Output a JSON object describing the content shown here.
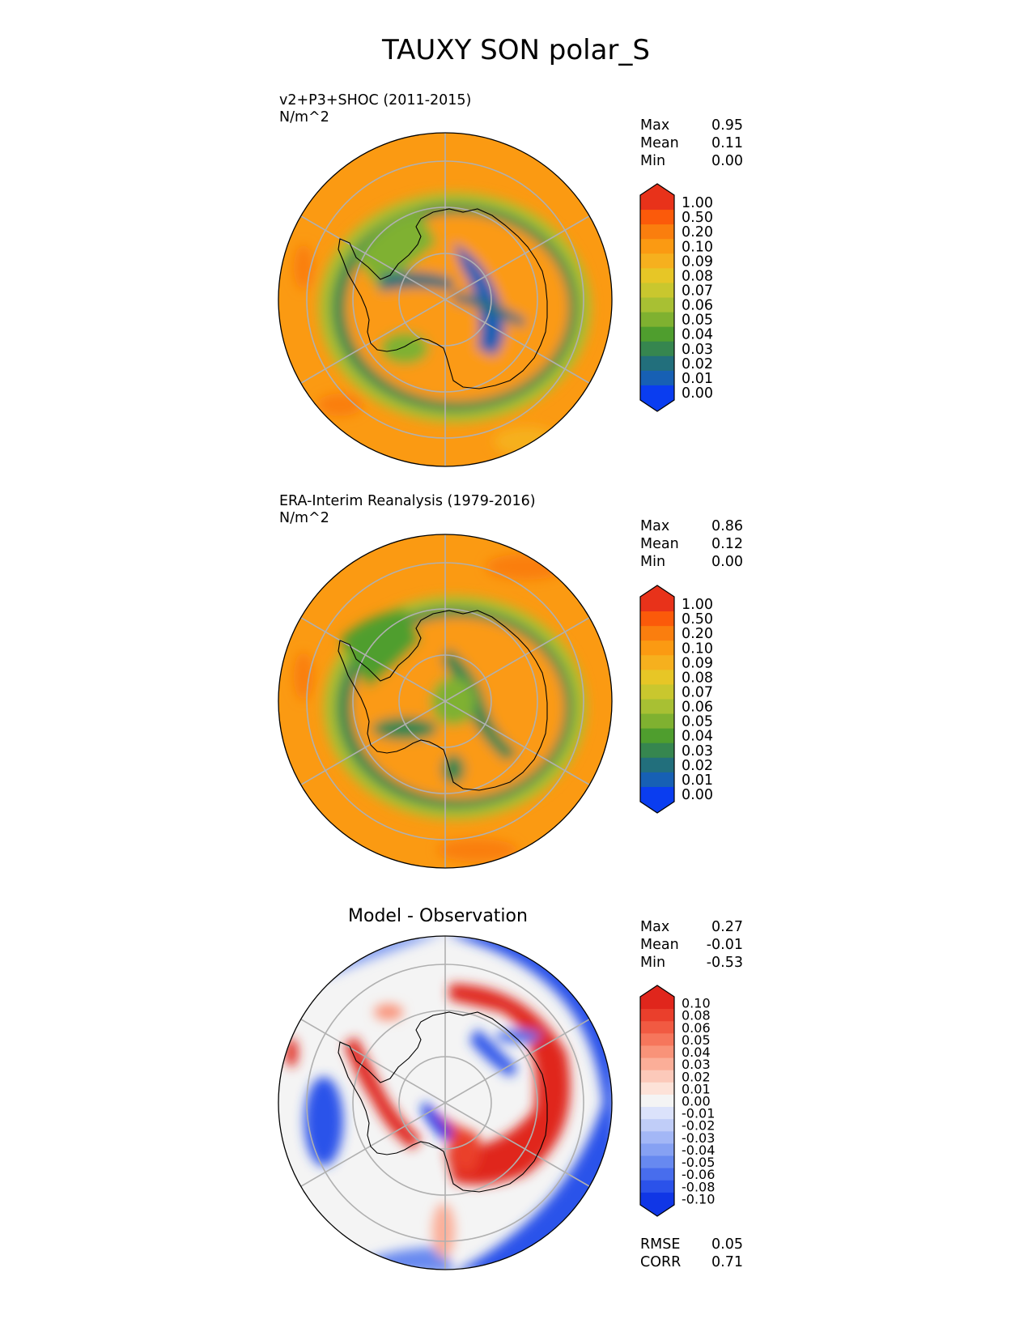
{
  "title": "TAUXY SON polar_S",
  "panels": [
    {
      "id": "test",
      "title": "v2+P3+SHOC (2011-2015)",
      "units": "N/m^2",
      "stats": [
        {
          "label": "Max",
          "value": "0.95"
        },
        {
          "label": "Mean",
          "value": "0.11"
        },
        {
          "label": "Min",
          "value": "0.00"
        }
      ],
      "colorbar": {
        "ticks": [
          "1.00",
          "0.50",
          "0.20",
          "0.10",
          "0.09",
          "0.08",
          "0.07",
          "0.06",
          "0.05",
          "0.04",
          "0.03",
          "0.02",
          "0.01",
          "0.00"
        ],
        "colors": [
          "#e8321a",
          "#fb5a0a",
          "#fa7e0e",
          "#fb9a12",
          "#f6b01e",
          "#e7c626",
          "#c9c72e",
          "#a8c033",
          "#7fb130",
          "#4f9e2e",
          "#36864f",
          "#226f7c",
          "#1760b4",
          "#0a3df0"
        ]
      }
    },
    {
      "id": "reference",
      "title": "ERA-Interim Reanalysis (1979-2016)",
      "units": "N/m^2",
      "stats": [
        {
          "label": "Max",
          "value": "0.86"
        },
        {
          "label": "Mean",
          "value": "0.12"
        },
        {
          "label": "Min",
          "value": "0.00"
        }
      ],
      "colorbar": {
        "ticks": [
          "1.00",
          "0.50",
          "0.20",
          "0.10",
          "0.09",
          "0.08",
          "0.07",
          "0.06",
          "0.05",
          "0.04",
          "0.03",
          "0.02",
          "0.01",
          "0.00"
        ],
        "colors": [
          "#e8321a",
          "#fb5a0a",
          "#fa7e0e",
          "#fb9a12",
          "#f6b01e",
          "#e7c626",
          "#c9c72e",
          "#a8c033",
          "#7fb130",
          "#4f9e2e",
          "#36864f",
          "#226f7c",
          "#1760b4",
          "#0a3df0"
        ]
      }
    },
    {
      "id": "difference",
      "title": "Model - Observation",
      "stats": [
        {
          "label": "Max",
          "value": "0.27"
        },
        {
          "label": "Mean",
          "value": "-0.01"
        },
        {
          "label": "Min",
          "value": "-0.53"
        }
      ],
      "extra_stats": [
        {
          "label": "RMSE",
          "value": "0.05"
        },
        {
          "label": "CORR",
          "value": "0.71"
        }
      ],
      "colorbar": {
        "ticks": [
          "0.10",
          "0.08",
          "0.06",
          "0.05",
          "0.04",
          "0.03",
          "0.02",
          "0.01",
          "0.00",
          "-0.01",
          "-0.02",
          "-0.03",
          "-0.04",
          "-0.05",
          "-0.06",
          "-0.08",
          "-0.10"
        ],
        "colors": [
          "#e0261c",
          "#ea3f2c",
          "#f15a42",
          "#f6765c",
          "#f99379",
          "#fbae98",
          "#fcc9ba",
          "#fde2d8",
          "#f4f4f4",
          "#dbe2fb",
          "#c0cdf8",
          "#a3b7f6",
          "#86a1f3",
          "#6789f0",
          "#486ded",
          "#2b52ea",
          "#1036e6"
        ]
      }
    }
  ],
  "chart_data": {
    "type": "heatmap",
    "title": "TAUXY SON polar_S",
    "projection": "south polar stereographic",
    "variable": "TAUXY",
    "season": "SON",
    "units": "N/m^2",
    "series": [
      {
        "name": "v2+P3+SHOC (2011-2015)",
        "max": 0.95,
        "mean": 0.11,
        "min": 0.0
      },
      {
        "name": "ERA-Interim Reanalysis (1979-2016)",
        "max": 0.86,
        "mean": 0.12,
        "min": 0.0
      },
      {
        "name": "Model - Observation",
        "max": 0.27,
        "mean": -0.01,
        "min": -0.53,
        "rmse": 0.05,
        "corr": 0.71
      }
    ],
    "levels_main": [
      0.0,
      0.01,
      0.02,
      0.03,
      0.04,
      0.05,
      0.06,
      0.07,
      0.08,
      0.09,
      0.1,
      0.2,
      0.5,
      1.0
    ],
    "levels_diff": [
      -0.1,
      -0.08,
      -0.06,
      -0.05,
      -0.04,
      -0.03,
      -0.02,
      -0.01,
      0.0,
      0.01,
      0.02,
      0.03,
      0.04,
      0.05,
      0.06,
      0.08,
      0.1
    ]
  }
}
